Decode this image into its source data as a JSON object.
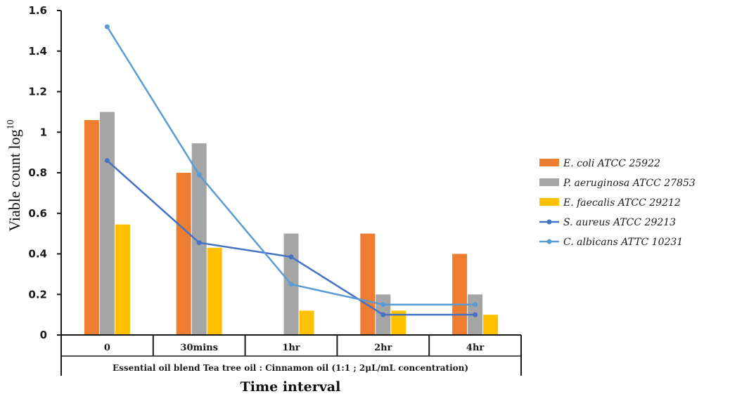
{
  "chart_data": {
    "type": "bar",
    "categories": [
      "0",
      "30mins",
      "1hr",
      "2hr",
      "4hr"
    ],
    "group_label": "Essential oil blend Tea tree oil : Cinnamon oil (1:1 ; 2μL/mL concentration)",
    "xlabel": "Time interval",
    "ylabel": "Viable count log",
    "ylabel_superscript": "10",
    "ylim": [
      0,
      1.6
    ],
    "yticks": [
      "0",
      "0.2",
      "0.4",
      "0.6",
      "0.8",
      "1",
      "1.2",
      "1.4",
      "1.6"
    ],
    "legend_position": "right",
    "series": [
      {
        "name": "E. coli ATCC 25922",
        "kind": "bar",
        "color": "#ED7D31",
        "values": [
          1.06,
          0.8,
          0,
          0.5,
          0.4
        ]
      },
      {
        "name": "P. aeruginosa ATCC 27853",
        "kind": "bar",
        "color": "#A5A5A5",
        "values": [
          1.1,
          0.945,
          0.5,
          0.2,
          0.2
        ]
      },
      {
        "name": "E. faecalis ATCC 29212",
        "kind": "bar",
        "color": "#FFC000",
        "values": [
          0.545,
          0.43,
          0.12,
          0.12,
          0.1
        ]
      },
      {
        "name": "S. aureus ATCC 29213",
        "kind": "line",
        "color": "#4472C4",
        "values": [
          0.86,
          0.455,
          0.385,
          0.1,
          0.1
        ]
      },
      {
        "name": "C. albicans ATTC 10231",
        "kind": "line",
        "color": "#5B9BD5",
        "values": [
          1.52,
          0.79,
          0.25,
          0.15,
          0.15
        ]
      }
    ]
  }
}
